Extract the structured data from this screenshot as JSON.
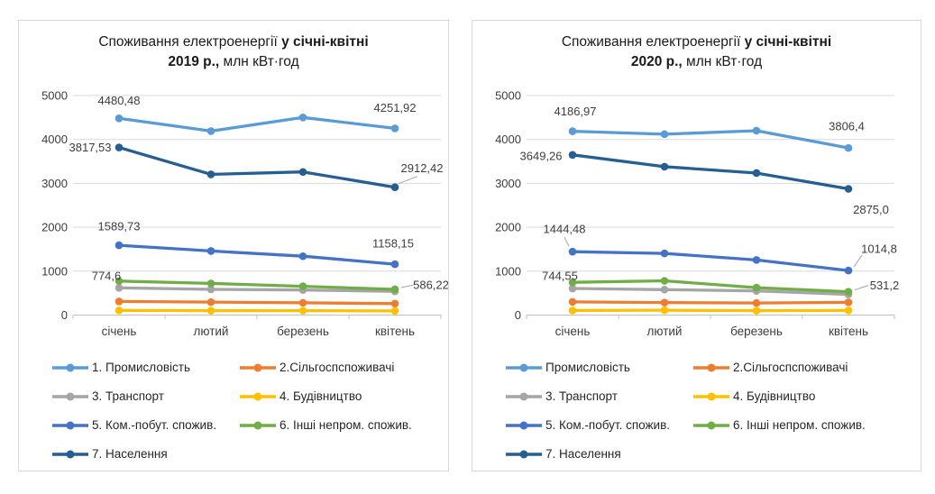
{
  "page_background": "#ffffff",
  "chart_data": [
    {
      "type": "line",
      "title": {
        "line1_regular": "Споживання електроенергії ",
        "line1_bold": "у січні-квітні",
        "line2_bold": "2019 р.,",
        "line2_regular": " млн кВт·год"
      },
      "categories": [
        "січень",
        "лютий",
        "березень",
        "квітень"
      ],
      "y_axis": {
        "min": 0,
        "max": 5000,
        "ticks": [
          0,
          1000,
          2000,
          3000,
          4000,
          5000
        ]
      },
      "grid": true,
      "legend_position": "bottom",
      "series": [
        {
          "name": "1. Промисловість",
          "color": "#5B9BD5",
          "values": [
            4480.48,
            4190,
            4500,
            4251.92
          ],
          "labels": [
            {
              "i": 0,
              "text": "4480,48",
              "dx": 0,
              "dy": -20
            },
            {
              "i": 3,
              "text": "4251,92",
              "dx": 0,
              "dy": -23
            }
          ]
        },
        {
          "name": "2.Сільгоспспоживачі",
          "color": "#ED7D31",
          "values": [
            310,
            295,
            280,
            260
          ],
          "labels": []
        },
        {
          "name": "3. Транспорт",
          "color": "#A5A5A5",
          "values": [
            620,
            585,
            570,
            540
          ],
          "labels": []
        },
        {
          "name": "4. Будівництво",
          "color": "#FFC000",
          "values": [
            105,
            100,
            100,
            95
          ],
          "labels": []
        },
        {
          "name": "5. Ком.-побут. спожив.",
          "color": "#4472C4",
          "values": [
            1589.73,
            1460,
            1340,
            1158.15
          ],
          "labels": [
            {
              "i": 0,
              "text": "1589,73",
              "dx": 0,
              "dy": -21
            },
            {
              "i": 3,
              "text": "1158,15",
              "dx": -2,
              "dy": -23
            }
          ]
        },
        {
          "name": "6. Інші непром. спожив.",
          "color": "#70AD47",
          "values": [
            774.6,
            720,
            655,
            586.22
          ],
          "labels": [
            {
              "i": 0,
              "text": "774,6",
              "dx": -14,
              "dy": -6
            },
            {
              "i": 3,
              "text": "586,22",
              "dx": 40,
              "dy": -5,
              "leader": [
                7,
                -2,
                21,
                -5
              ]
            }
          ]
        },
        {
          "name": "7. Населення",
          "color": "#255E91",
          "values": [
            3817.53,
            3205,
            3260,
            2912.42
          ],
          "labels": [
            {
              "i": 0,
              "text": "3817,53",
              "dx": -32,
              "dy": 0
            },
            {
              "i": 3,
              "text": "2912,42",
              "dx": 30,
              "dy": -21,
              "leader": [
                4,
                -4,
                25,
                -12
              ]
            }
          ]
        }
      ],
      "legend": [
        {
          "label": "1. Промисловість",
          "color": "#5B9BD5"
        },
        {
          "label": "2.Сільгоспспоживачі",
          "color": "#ED7D31"
        },
        {
          "label": "3. Транспорт",
          "color": "#A5A5A5"
        },
        {
          "label": "4. Будівництво",
          "color": "#FFC000"
        },
        {
          "label": "5. Ком.-побут. спожив.",
          "color": "#4472C4"
        },
        {
          "label": "6. Інші непром. спожив.",
          "color": "#70AD47"
        },
        {
          "label": "7. Населення",
          "color": "#255E91"
        }
      ]
    },
    {
      "type": "line",
      "title": {
        "line1_regular": "Споживання електроенергії ",
        "line1_bold": "у січні-квітні",
        "line2_bold": "2020 р.,",
        "line2_regular": " млн кВт·год"
      },
      "categories": [
        "січень",
        "лютий",
        "березень",
        "квітень"
      ],
      "y_axis": {
        "min": 0,
        "max": 5000,
        "ticks": [
          0,
          1000,
          2000,
          3000,
          4000,
          5000
        ]
      },
      "grid": true,
      "legend_position": "bottom",
      "series": [
        {
          "name": "Промисловість",
          "color": "#5B9BD5",
          "values": [
            4186.97,
            4120,
            4200,
            3806.4
          ],
          "labels": [
            {
              "i": 0,
              "text": "4186,97",
              "dx": 3,
              "dy": -22
            },
            {
              "i": 3,
              "text": "3806,4",
              "dx": -2,
              "dy": -24
            }
          ]
        },
        {
          "name": "2.Сільгоспспоживачі",
          "color": "#ED7D31",
          "values": [
            300,
            285,
            275,
            290
          ],
          "labels": []
        },
        {
          "name": "3. Транспорт",
          "color": "#A5A5A5",
          "values": [
            605,
            580,
            550,
            470
          ],
          "labels": []
        },
        {
          "name": "4. Будівництво",
          "color": "#FFC000",
          "values": [
            105,
            110,
            100,
            105
          ],
          "labels": []
        },
        {
          "name": "5. Ком.-побут. спожив.",
          "color": "#4472C4",
          "values": [
            1444.48,
            1405,
            1255,
            1014.8
          ],
          "labels": [
            {
              "i": 0,
              "text": "1444,48",
              "dx": -9,
              "dy": -25,
              "leader": [
                -4,
                -6,
                -9,
                -16
              ]
            },
            {
              "i": 3,
              "text": "1014,8",
              "dx": 34,
              "dy": -24,
              "leader": [
                6,
                -4,
                15,
                -17
              ]
            }
          ]
        },
        {
          "name": "6. Інші непром. спожив.",
          "color": "#70AD47",
          "values": [
            744.55,
            780,
            625,
            531.2
          ],
          "labels": [
            {
              "i": 0,
              "text": "744,55",
              "dx": -14,
              "dy": -7
            },
            {
              "i": 3,
              "text": "531,2",
              "dx": 40,
              "dy": -7,
              "leader": [
                7,
                -2,
                22,
                -7
              ]
            }
          ]
        },
        {
          "name": "7. Населення",
          "color": "#255E91",
          "values": [
            3649.26,
            3380,
            3235,
            2875.0
          ],
          "labels": [
            {
              "i": 0,
              "text": "3649,26",
              "dx": -35,
              "dy": 1
            },
            {
              "i": 3,
              "text": "2875,0",
              "dx": 25,
              "dy": 23
            }
          ]
        }
      ],
      "legend": [
        {
          "label": "Промисловість",
          "color": "#5B9BD5"
        },
        {
          "label": "2.Сільгоспспоживачі",
          "color": "#ED7D31"
        },
        {
          "label": "3. Транспорт",
          "color": "#A5A5A5"
        },
        {
          "label": "4. Будівництво",
          "color": "#FFC000"
        },
        {
          "label": "5. Ком.-побут. спожив.",
          "color": "#4472C4"
        },
        {
          "label": "6. Інші непром. спожив.",
          "color": "#70AD47"
        },
        {
          "label": "7. Населення",
          "color": "#255E91"
        }
      ]
    }
  ]
}
